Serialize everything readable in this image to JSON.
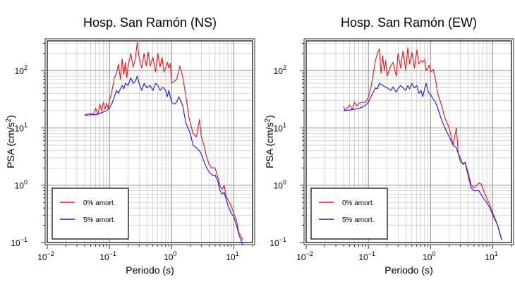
{
  "chart_data": [
    {
      "type": "line",
      "title": "Hosp. San Ramón (NS)",
      "xlabel": "Periodo (s)",
      "ylabel_main": "PSA (cm/s",
      "ylabel_sup": "2",
      "ylabel_close": ")",
      "xscale": "log",
      "yscale": "log",
      "xlim": [
        0.01,
        20
      ],
      "ylim": [
        0.1,
        330
      ],
      "grid": true,
      "legend_position": "bottom-left",
      "xticks": [
        {
          "base": "10",
          "exp": "−2"
        },
        {
          "base": "10",
          "exp": "−1"
        },
        {
          "base": "10",
          "exp": "0"
        },
        {
          "base": "10",
          "exp": "1"
        }
      ],
      "yticks": [
        {
          "base": "10",
          "exp": "−1"
        },
        {
          "base": "10",
          "exp": "0"
        },
        {
          "base": "10",
          "exp": "1"
        },
        {
          "base": "10",
          "exp": "2"
        }
      ],
      "series": [
        {
          "name": "0% amort.",
          "color": "#e8141a",
          "points": [
            [
              0.04,
              17
            ],
            [
              0.045,
              17.5
            ],
            [
              0.05,
              18
            ],
            [
              0.055,
              17
            ],
            [
              0.06,
              22
            ],
            [
              0.065,
              17
            ],
            [
              0.07,
              26
            ],
            [
              0.075,
              20
            ],
            [
              0.08,
              28
            ],
            [
              0.085,
              21
            ],
            [
              0.09,
              27
            ],
            [
              0.095,
              22
            ],
            [
              0.1,
              30
            ],
            [
              0.11,
              45
            ],
            [
              0.12,
              75
            ],
            [
              0.13,
              90
            ],
            [
              0.14,
              130
            ],
            [
              0.15,
              70
            ],
            [
              0.16,
              160
            ],
            [
              0.17,
              85
            ],
            [
              0.18,
              140
            ],
            [
              0.19,
              75
            ],
            [
              0.2,
              120
            ],
            [
              0.22,
              200
            ],
            [
              0.24,
              115
            ],
            [
              0.26,
              160
            ],
            [
              0.28,
              310
            ],
            [
              0.3,
              170
            ],
            [
              0.33,
              110
            ],
            [
              0.36,
              200
            ],
            [
              0.39,
              120
            ],
            [
              0.42,
              210
            ],
            [
              0.45,
              120
            ],
            [
              0.5,
              170
            ],
            [
              0.55,
              95
            ],
            [
              0.6,
              200
            ],
            [
              0.65,
              115
            ],
            [
              0.7,
              170
            ],
            [
              0.75,
              95
            ],
            [
              0.8,
              110
            ],
            [
              0.85,
              140
            ],
            [
              0.9,
              110
            ],
            [
              0.95,
              135
            ],
            [
              1.0,
              60
            ],
            [
              1.1,
              65
            ],
            [
              1.2,
              70
            ],
            [
              1.35,
              120
            ],
            [
              1.5,
              80
            ],
            [
              1.7,
              35
            ],
            [
              1.9,
              15
            ],
            [
              2.2,
              8
            ],
            [
              2.5,
              7
            ],
            [
              2.8,
              14
            ],
            [
              3.0,
              7
            ],
            [
              3.3,
              5
            ],
            [
              3.6,
              3.3
            ],
            [
              4.0,
              2.3
            ],
            [
              4.4,
              2.0
            ],
            [
              5.0,
              2.0
            ],
            [
              5.5,
              1.4
            ],
            [
              6.0,
              0.95
            ],
            [
              6.5,
              0.85
            ],
            [
              7.0,
              1.0
            ],
            [
              7.5,
              0.65
            ],
            [
              8.0,
              0.55
            ],
            [
              9.0,
              0.45
            ],
            [
              10.0,
              0.32
            ],
            [
              11.0,
              0.25
            ],
            [
              12.0,
              0.15
            ],
            [
              13.0,
              0.13
            ],
            [
              14.0,
              0.11
            ]
          ]
        },
        {
          "name": "5% amort.",
          "color": "#1a14e8",
          "points": [
            [
              0.04,
              16.5
            ],
            [
              0.05,
              17
            ],
            [
              0.06,
              17
            ],
            [
              0.07,
              18
            ],
            [
              0.08,
              19
            ],
            [
              0.09,
              20
            ],
            [
              0.1,
              22
            ],
            [
              0.11,
              27
            ],
            [
              0.12,
              35
            ],
            [
              0.13,
              45
            ],
            [
              0.14,
              40
            ],
            [
              0.15,
              48
            ],
            [
              0.16,
              55
            ],
            [
              0.17,
              48
            ],
            [
              0.18,
              60
            ],
            [
              0.2,
              55
            ],
            [
              0.22,
              75
            ],
            [
              0.24,
              60
            ],
            [
              0.26,
              65
            ],
            [
              0.28,
              80
            ],
            [
              0.3,
              60
            ],
            [
              0.33,
              45
            ],
            [
              0.36,
              60
            ],
            [
              0.4,
              50
            ],
            [
              0.45,
              55
            ],
            [
              0.5,
              45
            ],
            [
              0.55,
              60
            ],
            [
              0.6,
              55
            ],
            [
              0.65,
              45
            ],
            [
              0.7,
              50
            ],
            [
              0.75,
              50
            ],
            [
              0.8,
              45
            ],
            [
              0.85,
              35
            ],
            [
              0.9,
              45
            ],
            [
              0.95,
              35
            ],
            [
              1.0,
              28
            ],
            [
              1.1,
              26
            ],
            [
              1.2,
              28
            ],
            [
              1.3,
              35
            ],
            [
              1.5,
              25
            ],
            [
              1.7,
              12
            ],
            [
              2.0,
              8
            ],
            [
              2.2,
              5
            ],
            [
              2.5,
              4.5
            ],
            [
              2.8,
              4
            ],
            [
              3.0,
              3.5
            ],
            [
              3.5,
              2.2
            ],
            [
              4.0,
              1.7
            ],
            [
              4.5,
              1.5
            ],
            [
              5.0,
              1.5
            ],
            [
              5.5,
              1.2
            ],
            [
              6.0,
              0.8
            ],
            [
              6.5,
              0.7
            ],
            [
              7.0,
              0.75
            ],
            [
              8.0,
              0.45
            ],
            [
              9.0,
              0.33
            ],
            [
              10.0,
              0.28
            ],
            [
              11.0,
              0.2
            ],
            [
              12.0,
              0.14
            ],
            [
              13.0,
              0.11
            ],
            [
              14.0,
              0.09
            ]
          ]
        }
      ]
    },
    {
      "type": "line",
      "title": "Hosp. San Ramón (EW)",
      "xlabel": "Periodo (s)",
      "ylabel_main": "PSA (cm/s",
      "ylabel_sup": "2",
      "ylabel_close": ")",
      "xscale": "log",
      "yscale": "log",
      "xlim": [
        0.01,
        20
      ],
      "ylim": [
        0.1,
        330
      ],
      "grid": true,
      "legend_position": "bottom-left",
      "xticks": [
        {
          "base": "10",
          "exp": "−2"
        },
        {
          "base": "10",
          "exp": "−1"
        },
        {
          "base": "10",
          "exp": "0"
        },
        {
          "base": "10",
          "exp": "1"
        }
      ],
      "yticks": [
        {
          "base": "10",
          "exp": "−1"
        },
        {
          "base": "10",
          "exp": "0"
        },
        {
          "base": "10",
          "exp": "1"
        },
        {
          "base": "10",
          "exp": "2"
        }
      ],
      "series": [
        {
          "name": "0% amort.",
          "color": "#e8141a",
          "points": [
            [
              0.04,
              24
            ],
            [
              0.042,
              20
            ],
            [
              0.045,
              22
            ],
            [
              0.05,
              25
            ],
            [
              0.055,
              21
            ],
            [
              0.06,
              28
            ],
            [
              0.065,
              24
            ],
            [
              0.07,
              27
            ],
            [
              0.08,
              28
            ],
            [
              0.09,
              28
            ],
            [
              0.1,
              35
            ],
            [
              0.11,
              50
            ],
            [
              0.12,
              90
            ],
            [
              0.13,
              150
            ],
            [
              0.14,
              200
            ],
            [
              0.15,
              240
            ],
            [
              0.16,
              90
            ],
            [
              0.17,
              180
            ],
            [
              0.18,
              100
            ],
            [
              0.19,
              150
            ],
            [
              0.2,
              80
            ],
            [
              0.22,
              110
            ],
            [
              0.25,
              140
            ],
            [
              0.28,
              80
            ],
            [
              0.3,
              200
            ],
            [
              0.33,
              110
            ],
            [
              0.36,
              220
            ],
            [
              0.4,
              100
            ],
            [
              0.43,
              250
            ],
            [
              0.46,
              130
            ],
            [
              0.5,
              210
            ],
            [
              0.55,
              110
            ],
            [
              0.6,
              230
            ],
            [
              0.65,
              130
            ],
            [
              0.7,
              150
            ],
            [
              0.75,
              140
            ],
            [
              0.8,
              155
            ],
            [
              0.85,
              100
            ],
            [
              0.9,
              110
            ],
            [
              0.95,
              125
            ],
            [
              1.0,
              95
            ],
            [
              1.1,
              105
            ],
            [
              1.2,
              70
            ],
            [
              1.3,
              40
            ],
            [
              1.5,
              25
            ],
            [
              1.7,
              15
            ],
            [
              2.0,
              10
            ],
            [
              2.3,
              5
            ],
            [
              2.6,
              10
            ],
            [
              2.8,
              3.5
            ],
            [
              3.0,
              2.6
            ],
            [
              3.3,
              2.4
            ],
            [
              3.6,
              2.5
            ],
            [
              4.0,
              1.7
            ],
            [
              4.5,
              1.0
            ],
            [
              5.0,
              0.9
            ],
            [
              6.0,
              1.1
            ],
            [
              6.5,
              1.05
            ],
            [
              7.0,
              0.85
            ],
            [
              8.0,
              0.6
            ],
            [
              9.0,
              0.45
            ],
            [
              10.0,
              0.33
            ],
            [
              12.0,
              0.2
            ],
            [
              13.0,
              0.14
            ],
            [
              14.0,
              0.11
            ]
          ]
        },
        {
          "name": "5% amort.",
          "color": "#1a14e8",
          "points": [
            [
              0.04,
              20
            ],
            [
              0.05,
              20.5
            ],
            [
              0.06,
              21
            ],
            [
              0.07,
              22
            ],
            [
              0.08,
              23
            ],
            [
              0.09,
              25
            ],
            [
              0.1,
              28
            ],
            [
              0.11,
              35
            ],
            [
              0.12,
              42
            ],
            [
              0.13,
              50
            ],
            [
              0.14,
              48
            ],
            [
              0.15,
              60
            ],
            [
              0.17,
              55
            ],
            [
              0.2,
              50
            ],
            [
              0.23,
              45
            ],
            [
              0.25,
              52
            ],
            [
              0.28,
              42
            ],
            [
              0.3,
              48
            ],
            [
              0.33,
              55
            ],
            [
              0.36,
              50
            ],
            [
              0.4,
              45
            ],
            [
              0.43,
              55
            ],
            [
              0.46,
              48
            ],
            [
              0.5,
              60
            ],
            [
              0.55,
              50
            ],
            [
              0.6,
              55
            ],
            [
              0.65,
              40
            ],
            [
              0.7,
              45
            ],
            [
              0.75,
              35
            ],
            [
              0.8,
              48
            ],
            [
              0.85,
              60
            ],
            [
              0.9,
              45
            ],
            [
              0.95,
              40
            ],
            [
              1.0,
              38
            ],
            [
              1.1,
              32
            ],
            [
              1.2,
              28
            ],
            [
              1.3,
              22
            ],
            [
              1.5,
              14
            ],
            [
              1.7,
              10
            ],
            [
              2.0,
              7
            ],
            [
              2.3,
              5
            ],
            [
              2.6,
              4.5
            ],
            [
              2.8,
              3.5
            ],
            [
              3.0,
              3
            ],
            [
              3.3,
              2.3
            ],
            [
              3.6,
              2.5
            ],
            [
              4.0,
              1.5
            ],
            [
              4.5,
              0.9
            ],
            [
              5.0,
              0.8
            ],
            [
              5.5,
              0.8
            ],
            [
              6.0,
              0.8
            ],
            [
              7.0,
              0.6
            ],
            [
              8.0,
              0.5
            ],
            [
              9.0,
              0.4
            ],
            [
              10.0,
              0.3
            ],
            [
              12.0,
              0.2
            ],
            [
              14.0,
              0.11
            ]
          ]
        }
      ]
    }
  ]
}
